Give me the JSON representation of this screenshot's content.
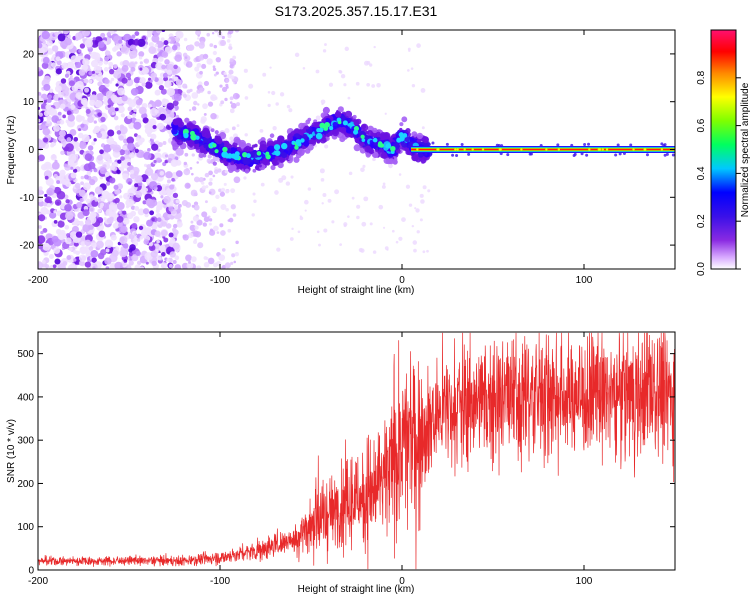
{
  "title": "S173.2025.357.15.17.E31",
  "colors": {
    "snr_line": "#e8292a",
    "frame": "#000000"
  },
  "chart_data": [
    {
      "type": "heatmap",
      "name": "spectrogram",
      "xlabel": "Height of straight line (km)",
      "ylabel": "Frequency (Hz)",
      "xlim": [
        -200,
        150
      ],
      "ylim": [
        -25,
        25
      ],
      "xticks": [
        "-200",
        "-100",
        "0",
        "100"
      ],
      "yticks": [
        "20",
        "10",
        "0",
        "-10",
        "-20"
      ],
      "xtick_values": [
        -200,
        -100,
        0,
        100
      ],
      "ytick_values": [
        20,
        10,
        0,
        -10,
        -20
      ],
      "colorbar": {
        "label": "Normalized spectral amplitude",
        "range": [
          0,
          1
        ],
        "ticks": [
          "0.0",
          "0.2",
          "0.4",
          "0.6",
          "0.8"
        ],
        "tick_values": [
          0.0,
          0.2,
          0.4,
          0.6,
          0.8
        ],
        "colormap": "rainbow (purple-blue-cyan-green-yellow-red-pink)"
      },
      "ridge": {
        "x": [
          -125,
          -115,
          -105,
          -95,
          -85,
          -75,
          -65,
          -55,
          -45,
          -35,
          -28,
          -20,
          -12,
          -5,
          0,
          5,
          10,
          150
        ],
        "freq": [
          4,
          3,
          1,
          -1,
          -2,
          -1,
          0,
          2,
          4,
          6,
          5,
          2,
          1,
          0,
          3,
          1,
          0,
          0
        ]
      }
    },
    {
      "type": "line",
      "name": "snr",
      "xlabel": "Height of straight line (km)",
      "ylabel": "SNR (10 * v/v)",
      "xlim": [
        -200,
        150
      ],
      "ylim": [
        0,
        550
      ],
      "xticks": [
        "-200",
        "-100",
        "0",
        "100"
      ],
      "yticks": [
        "500",
        "400",
        "300",
        "200",
        "100",
        "0"
      ],
      "xtick_values": [
        -200,
        -100,
        0,
        100
      ],
      "ytick_values": [
        500,
        400,
        300,
        200,
        100,
        0
      ],
      "envelope": {
        "x": [
          -200,
          -120,
          -100,
          -80,
          -60,
          -50,
          -40,
          -30,
          -20,
          -10,
          0,
          10,
          20,
          30,
          50,
          100,
          150
        ],
        "mean": [
          20,
          22,
          28,
          45,
          70,
          100,
          130,
          150,
          180,
          200,
          280,
          320,
          360,
          385,
          400,
          405,
          410
        ]
      }
    }
  ]
}
